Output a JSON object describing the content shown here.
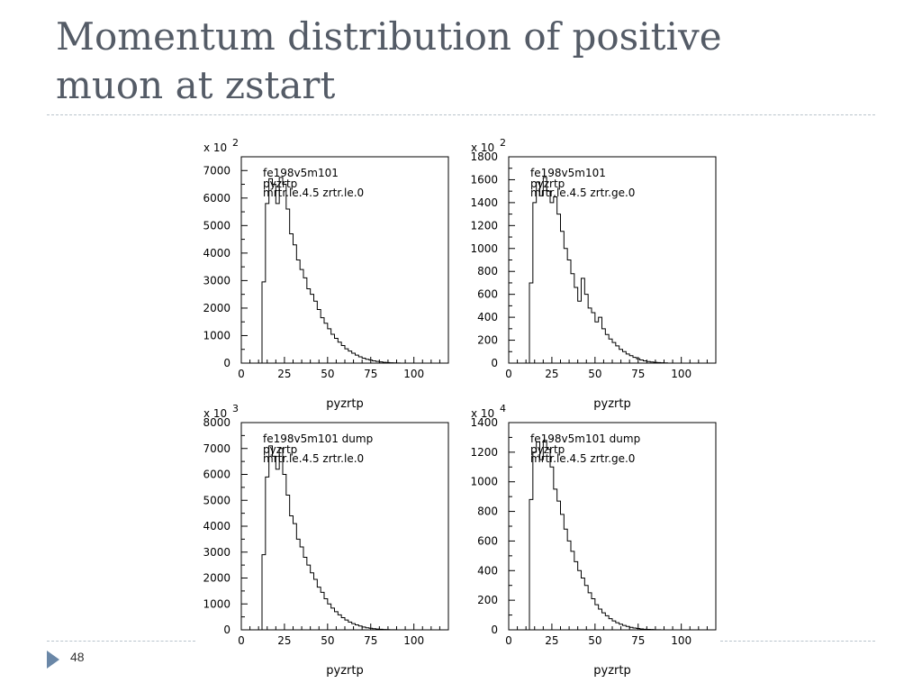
{
  "slide": {
    "title_line1": "Momentum distribution of positive",
    "title_line2": "muon at zstart",
    "page_number": "48"
  },
  "colors": {
    "title": "#545b66",
    "rule": "#b9c4cc",
    "marker": "#6a87a7",
    "ink": "#000000"
  },
  "chart_data": [
    {
      "type": "histogram",
      "title_lines": [
        "fe198v5m101",
        "pyzrtp",
        "mrtr.le.4.5 zrtr.le.0"
      ],
      "xlabel": "pyzrtp",
      "ylabel": "",
      "y_multiplier": "x 10",
      "y_exponent": "2",
      "xlim": [
        0,
        120
      ],
      "ylim": [
        0,
        7500
      ],
      "xticks": [
        "0",
        "25",
        "50",
        "75",
        "100"
      ],
      "yticks": [
        "0",
        "1000",
        "2000",
        "3000",
        "4000",
        "5000",
        "6000",
        "7000"
      ],
      "bin_width": 2,
      "x_start": 12,
      "values": [
        2950,
        5800,
        6700,
        6500,
        5800,
        6750,
        6500,
        5600,
        4700,
        4300,
        3750,
        3400,
        3100,
        2700,
        2500,
        2250,
        1950,
        1650,
        1450,
        1250,
        1050,
        900,
        760,
        640,
        520,
        440,
        360,
        290,
        230,
        180,
        140,
        110,
        80,
        60,
        45,
        30,
        20,
        12,
        8,
        5
      ]
    },
    {
      "type": "histogram",
      "title_lines": [
        "fe198v5m101",
        "pyzrtp",
        "mrtr.le.4.5 zrtr.ge.0"
      ],
      "xlabel": "pyzrtp",
      "ylabel": "",
      "y_multiplier": "x 10",
      "y_exponent": "2",
      "xlim": [
        0,
        120
      ],
      "ylim": [
        0,
        1800
      ],
      "xticks": [
        "0",
        "25",
        "50",
        "75",
        "100"
      ],
      "yticks": [
        "0",
        "200",
        "400",
        "600",
        "800",
        "1000",
        "1200",
        "1400",
        "1600",
        "1800"
      ],
      "bin_width": 2,
      "x_start": 12,
      "values": [
        700,
        1400,
        1580,
        1460,
        1620,
        1500,
        1400,
        1450,
        1300,
        1150,
        1000,
        900,
        780,
        660,
        540,
        740,
        600,
        480,
        440,
        360,
        400,
        300,
        250,
        210,
        180,
        150,
        120,
        100,
        80,
        65,
        50,
        38,
        28,
        20,
        14,
        10,
        7,
        5,
        3,
        2
      ]
    },
    {
      "type": "histogram",
      "title_lines": [
        "fe198v5m101 dump",
        "pyzrtp",
        "mrtr.le.4.5 zrtr.le.0"
      ],
      "xlabel": "pyzrtp",
      "ylabel": "",
      "y_multiplier": "x 10",
      "y_exponent": "3",
      "xlim": [
        0,
        120
      ],
      "ylim": [
        0,
        8000
      ],
      "xticks": [
        "0",
        "25",
        "50",
        "75",
        "100"
      ],
      "yticks": [
        "0",
        "1000",
        "2000",
        "3000",
        "4000",
        "5000",
        "6000",
        "7000",
        "8000"
      ],
      "bin_width": 2,
      "x_start": 12,
      "values": [
        2900,
        5900,
        7100,
        6700,
        6200,
        7000,
        6000,
        5200,
        4400,
        4100,
        3500,
        3200,
        2800,
        2500,
        2200,
        1950,
        1650,
        1450,
        1200,
        1000,
        840,
        700,
        580,
        470,
        380,
        300,
        240,
        190,
        150,
        110,
        80,
        60,
        45,
        32,
        22,
        15,
        10,
        6,
        4,
        2
      ]
    },
    {
      "type": "histogram",
      "title_lines": [
        "fe198v5m101 dump",
        "pyzrtp",
        "mrtr.le.4.5 zrtr.ge.0"
      ],
      "xlabel": "pyzrtp",
      "ylabel": "",
      "y_multiplier": "x 10",
      "y_exponent": "4",
      "xlim": [
        0,
        120
      ],
      "ylim": [
        0,
        1400
      ],
      "xticks": [
        "0",
        "25",
        "50",
        "75",
        "100"
      ],
      "yticks": [
        "0",
        "200",
        "400",
        "600",
        "800",
        "1000",
        "1200",
        "1400"
      ],
      "bin_width": 2,
      "x_start": 12,
      "values": [
        880,
        1200,
        1270,
        1150,
        1280,
        1220,
        1100,
        950,
        870,
        780,
        680,
        600,
        530,
        460,
        400,
        350,
        300,
        250,
        210,
        170,
        140,
        115,
        95,
        75,
        60,
        48,
        38,
        30,
        23,
        17,
        12,
        9,
        6,
        4,
        3,
        2,
        1,
        1,
        0,
        0
      ]
    }
  ]
}
